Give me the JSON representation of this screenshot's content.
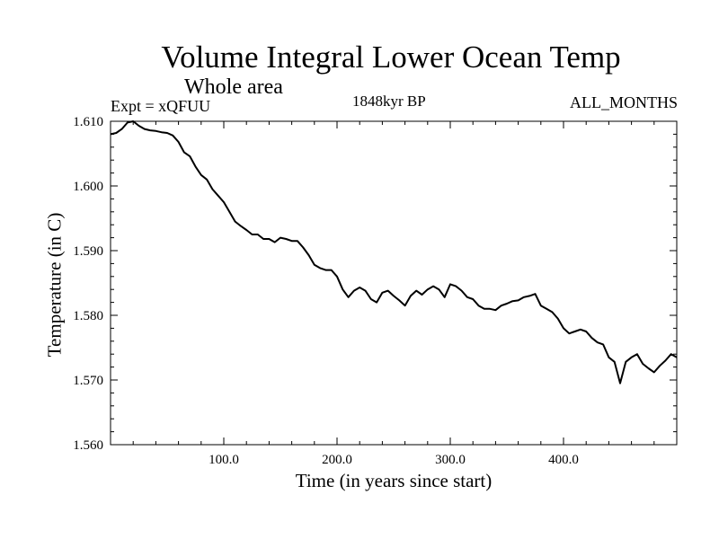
{
  "chart_data": {
    "type": "line",
    "title": "Volume Integral Lower Ocean Temp",
    "subtitle": "Whole area",
    "annotations": {
      "experiment": "Expt = xQFUU",
      "period": "1848kyr BP",
      "months": "ALL_MONTHS"
    },
    "xlabel": "Time (in years since start)",
    "ylabel": "Temperature (in C)",
    "xlim": [
      0,
      500
    ],
    "ylim": [
      1.56,
      1.61
    ],
    "xticks": [
      {
        "value": 100,
        "label": "100.0"
      },
      {
        "value": 200,
        "label": "200.0"
      },
      {
        "value": 300,
        "label": "300.0"
      },
      {
        "value": 400,
        "label": "400.0"
      }
    ],
    "yticks": [
      {
        "value": 1.56,
        "label": "1.560"
      },
      {
        "value": 1.57,
        "label": "1.570"
      },
      {
        "value": 1.58,
        "label": "1.580"
      },
      {
        "value": 1.59,
        "label": "1.590"
      },
      {
        "value": 1.6,
        "label": "1.600"
      },
      {
        "value": 1.61,
        "label": "1.610"
      }
    ],
    "grid": false,
    "series": [
      {
        "name": "Lower Ocean Temp",
        "color": "#000000",
        "x": [
          0,
          5,
          10,
          15,
          20,
          25,
          30,
          35,
          40,
          45,
          50,
          55,
          60,
          65,
          70,
          75,
          80,
          85,
          90,
          95,
          100,
          105,
          110,
          115,
          120,
          125,
          130,
          135,
          140,
          145,
          150,
          155,
          160,
          165,
          170,
          175,
          180,
          185,
          190,
          195,
          200,
          205,
          210,
          215,
          220,
          225,
          230,
          235,
          240,
          245,
          250,
          255,
          260,
          265,
          270,
          275,
          280,
          285,
          290,
          295,
          300,
          305,
          310,
          315,
          320,
          325,
          330,
          335,
          340,
          345,
          350,
          355,
          360,
          365,
          370,
          375,
          380,
          385,
          390,
          395,
          400,
          405,
          410,
          415,
          420,
          425,
          430,
          435,
          440,
          445,
          450,
          455,
          460,
          465,
          470,
          475,
          480,
          485,
          490,
          495,
          500
        ],
        "y": [
          1.608,
          1.6082,
          1.6088,
          1.6098,
          1.61,
          1.6093,
          1.6088,
          1.6086,
          1.6085,
          1.6083,
          1.6082,
          1.6078,
          1.6068,
          1.6052,
          1.6046,
          1.603,
          1.6017,
          1.601,
          1.5995,
          1.5985,
          1.5975,
          1.596,
          1.5945,
          1.5938,
          1.5932,
          1.5925,
          1.5925,
          1.5918,
          1.5918,
          1.5913,
          1.592,
          1.5918,
          1.5915,
          1.5915,
          1.5905,
          1.5893,
          1.5878,
          1.5873,
          1.587,
          1.587,
          1.586,
          1.584,
          1.5828,
          1.5838,
          1.5843,
          1.5838,
          1.5825,
          1.582,
          1.5835,
          1.5838,
          1.583,
          1.5823,
          1.5815,
          1.583,
          1.5838,
          1.5832,
          1.584,
          1.5845,
          1.584,
          1.5828,
          1.5848,
          1.5845,
          1.5838,
          1.5828,
          1.5825,
          1.5815,
          1.581,
          1.581,
          1.5808,
          1.5815,
          1.5818,
          1.5822,
          1.5823,
          1.5828,
          1.583,
          1.5833,
          1.5815,
          1.581,
          1.5805,
          1.5795,
          1.578,
          1.5772,
          1.5775,
          1.5778,
          1.5775,
          1.5765,
          1.5758,
          1.5755,
          1.5735,
          1.5728,
          1.5695,
          1.5728,
          1.5735,
          1.574,
          1.5725,
          1.5718,
          1.5712,
          1.5722,
          1.573,
          1.574,
          1.5735
        ]
      }
    ]
  }
}
